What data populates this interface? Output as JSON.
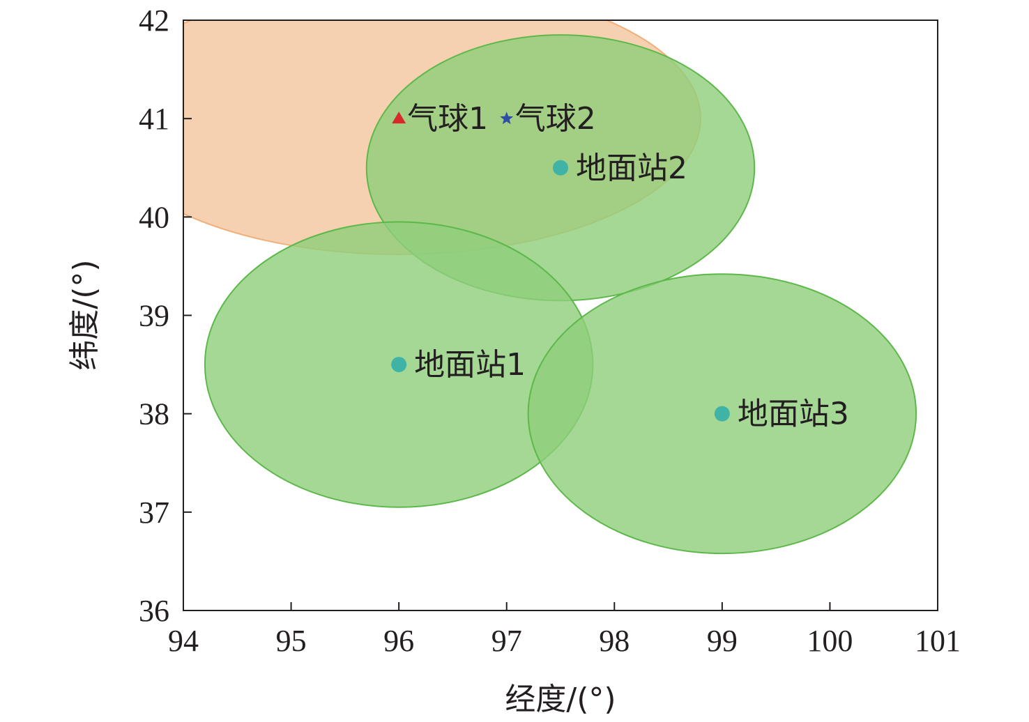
{
  "chart_data": {
    "type": "scatter",
    "xlabel": "经度/(°)",
    "ylabel": "纬度/(°)",
    "xlim": [
      94,
      101
    ],
    "ylim": [
      36,
      42
    ],
    "xticks": [
      "94",
      "95",
      "96",
      "97",
      "98",
      "99",
      "100",
      "101"
    ],
    "yticks": [
      "36",
      "37",
      "38",
      "39",
      "40",
      "41",
      "42"
    ],
    "grid": false,
    "legend": "none",
    "coverage_regions": [
      {
        "center": [
          96.0,
          41.0
        ],
        "radius_x": 2.8,
        "radius_y": 1.38,
        "color": "#f5c9a3",
        "edge": "#f0b07a"
      },
      {
        "center": [
          97.5,
          40.5
        ],
        "radius_x": 1.8,
        "radius_y": 1.35,
        "color": "#8fce7a",
        "edge": "#5db84a"
      },
      {
        "center": [
          96.0,
          38.5
        ],
        "radius_x": 1.8,
        "radius_y": 1.45,
        "color": "#8fce7a",
        "edge": "#5db84a"
      },
      {
        "center": [
          99.0,
          38.0
        ],
        "radius_x": 1.8,
        "radius_y": 1.42,
        "color": "#8fce7a",
        "edge": "#5db84a"
      }
    ],
    "points": [
      {
        "label": "气球1",
        "x": 96.0,
        "y": 41.0,
        "marker": "triangle",
        "color": "#d7282a"
      },
      {
        "label": "气球2",
        "x": 97.0,
        "y": 41.0,
        "marker": "star",
        "color": "#2e4ea3"
      },
      {
        "label": "地面站2",
        "x": 97.5,
        "y": 40.5,
        "marker": "circle",
        "color": "#3fb3a6"
      },
      {
        "label": "地面站1",
        "x": 96.0,
        "y": 38.5,
        "marker": "circle",
        "color": "#3fb3a6"
      },
      {
        "label": "地面站3",
        "x": 99.0,
        "y": 38.0,
        "marker": "circle",
        "color": "#3fb3a6"
      }
    ]
  }
}
